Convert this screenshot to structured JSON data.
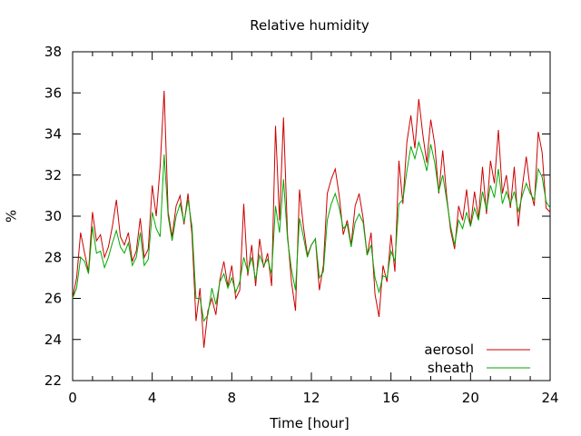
{
  "chart_data": {
    "type": "line",
    "title": "Relative humidity",
    "xlabel": "Time [hour]",
    "ylabel": "%",
    "xlim": [
      0,
      24
    ],
    "ylim": [
      22,
      38
    ],
    "x_ticks": [
      0,
      4,
      8,
      12,
      16,
      20,
      24
    ],
    "y_ticks": [
      22,
      24,
      26,
      28,
      30,
      32,
      34,
      36,
      38
    ],
    "x_tick_labels": [
      "0",
      "4",
      "8",
      "12",
      "16",
      "20",
      "24"
    ],
    "y_tick_labels": [
      "22",
      "24",
      "26",
      "28",
      "30",
      "32",
      "34",
      "36",
      "38"
    ],
    "grid": false,
    "legend_position": "bottom-right",
    "series": [
      {
        "name": "aerosol",
        "color": "#cc0000",
        "points": [
          [
            0,
            26.0
          ],
          [
            0.2,
            27.0
          ],
          [
            0.4,
            29.2
          ],
          [
            0.6,
            28.2
          ],
          [
            0.8,
            27.3
          ],
          [
            1.0,
            30.2
          ],
          [
            1.2,
            28.8
          ],
          [
            1.4,
            29.1
          ],
          [
            1.6,
            28.0
          ],
          [
            1.8,
            28.5
          ],
          [
            2.0,
            29.5
          ],
          [
            2.2,
            30.8
          ],
          [
            2.4,
            29.0
          ],
          [
            2.6,
            28.6
          ],
          [
            2.8,
            29.2
          ],
          [
            3.0,
            27.8
          ],
          [
            3.2,
            28.3
          ],
          [
            3.4,
            29.9
          ],
          [
            3.6,
            28.0
          ],
          [
            3.8,
            28.4
          ],
          [
            4.0,
            31.5
          ],
          [
            4.2,
            30.0
          ],
          [
            4.4,
            32.4
          ],
          [
            4.6,
            36.1
          ],
          [
            4.8,
            30.2
          ],
          [
            5.0,
            29.0
          ],
          [
            5.2,
            30.5
          ],
          [
            5.4,
            31.0
          ],
          [
            5.6,
            29.6
          ],
          [
            5.8,
            31.1
          ],
          [
            6.0,
            29.1
          ],
          [
            6.2,
            24.9
          ],
          [
            6.4,
            26.5
          ],
          [
            6.6,
            23.6
          ],
          [
            6.8,
            25.4
          ],
          [
            7.0,
            26.0
          ],
          [
            7.2,
            25.2
          ],
          [
            7.4,
            26.9
          ],
          [
            7.6,
            27.8
          ],
          [
            7.8,
            26.6
          ],
          [
            8.0,
            27.6
          ],
          [
            8.2,
            26.0
          ],
          [
            8.4,
            26.4
          ],
          [
            8.6,
            30.6
          ],
          [
            8.8,
            27.1
          ],
          [
            9.0,
            28.6
          ],
          [
            9.2,
            26.6
          ],
          [
            9.4,
            28.9
          ],
          [
            9.6,
            27.5
          ],
          [
            9.8,
            28.2
          ],
          [
            10.0,
            26.6
          ],
          [
            10.2,
            34.4
          ],
          [
            10.4,
            29.8
          ],
          [
            10.6,
            34.8
          ],
          [
            10.8,
            29.1
          ],
          [
            11.0,
            26.8
          ],
          [
            11.2,
            25.4
          ],
          [
            11.4,
            31.3
          ],
          [
            11.6,
            29.5
          ],
          [
            11.8,
            28.1
          ],
          [
            12.0,
            28.6
          ],
          [
            12.2,
            28.9
          ],
          [
            12.4,
            26.4
          ],
          [
            12.6,
            27.6
          ],
          [
            12.8,
            31.1
          ],
          [
            13.0,
            31.8
          ],
          [
            13.2,
            32.3
          ],
          [
            13.4,
            31.0
          ],
          [
            13.6,
            29.1
          ],
          [
            13.8,
            29.8
          ],
          [
            14.0,
            28.6
          ],
          [
            14.2,
            30.5
          ],
          [
            14.4,
            31.1
          ],
          [
            14.6,
            29.9
          ],
          [
            14.8,
            28.1
          ],
          [
            15.0,
            29.2
          ],
          [
            15.2,
            26.2
          ],
          [
            15.4,
            25.1
          ],
          [
            15.6,
            27.6
          ],
          [
            15.8,
            26.8
          ],
          [
            16.0,
            29.1
          ],
          [
            16.2,
            27.3
          ],
          [
            16.4,
            32.7
          ],
          [
            16.6,
            30.6
          ],
          [
            16.8,
            33.6
          ],
          [
            17.0,
            34.9
          ],
          [
            17.2,
            33.3
          ],
          [
            17.4,
            35.7
          ],
          [
            17.6,
            34.0
          ],
          [
            17.8,
            32.6
          ],
          [
            18.0,
            34.7
          ],
          [
            18.2,
            33.5
          ],
          [
            18.4,
            31.1
          ],
          [
            18.6,
            33.2
          ],
          [
            18.8,
            31.0
          ],
          [
            19.0,
            29.3
          ],
          [
            19.2,
            28.4
          ],
          [
            19.4,
            30.5
          ],
          [
            19.6,
            29.8
          ],
          [
            19.8,
            31.3
          ],
          [
            20.0,
            29.5
          ],
          [
            20.2,
            31.2
          ],
          [
            20.4,
            29.9
          ],
          [
            20.6,
            32.4
          ],
          [
            20.8,
            30.1
          ],
          [
            21.0,
            32.7
          ],
          [
            21.2,
            31.6
          ],
          [
            21.4,
            34.2
          ],
          [
            21.6,
            31.1
          ],
          [
            21.8,
            32.0
          ],
          [
            22.0,
            30.4
          ],
          [
            22.2,
            32.4
          ],
          [
            22.4,
            29.5
          ],
          [
            22.6,
            31.4
          ],
          [
            22.8,
            32.9
          ],
          [
            23.0,
            31.3
          ],
          [
            23.2,
            30.5
          ],
          [
            23.4,
            34.1
          ],
          [
            23.6,
            33.1
          ],
          [
            23.8,
            30.4
          ],
          [
            24.0,
            30.2
          ]
        ]
      },
      {
        "name": "sheath",
        "color": "#00aa00",
        "points": [
          [
            0,
            26.0
          ],
          [
            0.2,
            26.5
          ],
          [
            0.4,
            28.0
          ],
          [
            0.6,
            27.8
          ],
          [
            0.8,
            27.2
          ],
          [
            1.0,
            29.5
          ],
          [
            1.2,
            28.2
          ],
          [
            1.4,
            28.3
          ],
          [
            1.6,
            27.5
          ],
          [
            1.8,
            28.0
          ],
          [
            2.0,
            28.7
          ],
          [
            2.2,
            29.3
          ],
          [
            2.4,
            28.5
          ],
          [
            2.6,
            28.2
          ],
          [
            2.8,
            28.7
          ],
          [
            3.0,
            27.6
          ],
          [
            3.2,
            28.0
          ],
          [
            3.4,
            29.2
          ],
          [
            3.6,
            27.6
          ],
          [
            3.8,
            27.9
          ],
          [
            4.0,
            30.2
          ],
          [
            4.2,
            29.4
          ],
          [
            4.4,
            29.0
          ],
          [
            4.6,
            33.0
          ],
          [
            4.8,
            30.0
          ],
          [
            5.0,
            28.8
          ],
          [
            5.2,
            30.0
          ],
          [
            5.4,
            30.6
          ],
          [
            5.6,
            29.7
          ],
          [
            5.8,
            30.8
          ],
          [
            6.0,
            29.5
          ],
          [
            6.2,
            26.0
          ],
          [
            6.4,
            26.0
          ],
          [
            6.6,
            24.9
          ],
          [
            6.8,
            25.2
          ],
          [
            7.0,
            26.5
          ],
          [
            7.2,
            25.7
          ],
          [
            7.4,
            26.8
          ],
          [
            7.6,
            27.2
          ],
          [
            7.8,
            26.5
          ],
          [
            8.0,
            27.0
          ],
          [
            8.2,
            26.3
          ],
          [
            8.4,
            26.8
          ],
          [
            8.6,
            28.0
          ],
          [
            8.8,
            27.3
          ],
          [
            9.0,
            28.0
          ],
          [
            9.2,
            26.9
          ],
          [
            9.4,
            28.1
          ],
          [
            9.6,
            27.6
          ],
          [
            9.8,
            27.9
          ],
          [
            10.0,
            27.2
          ],
          [
            10.2,
            30.5
          ],
          [
            10.4,
            29.2
          ],
          [
            10.6,
            31.8
          ],
          [
            10.8,
            28.9
          ],
          [
            11.0,
            27.4
          ],
          [
            11.2,
            26.4
          ],
          [
            11.4,
            29.9
          ],
          [
            11.6,
            29.0
          ],
          [
            11.8,
            28.0
          ],
          [
            12.0,
            28.6
          ],
          [
            12.2,
            28.9
          ],
          [
            12.4,
            27.0
          ],
          [
            12.6,
            27.3
          ],
          [
            12.8,
            29.8
          ],
          [
            13.0,
            30.6
          ],
          [
            13.2,
            31.1
          ],
          [
            13.4,
            30.4
          ],
          [
            13.6,
            29.4
          ],
          [
            13.8,
            29.6
          ],
          [
            14.0,
            28.5
          ],
          [
            14.2,
            29.7
          ],
          [
            14.4,
            30.1
          ],
          [
            14.6,
            29.7
          ],
          [
            14.8,
            28.1
          ],
          [
            15.0,
            28.6
          ],
          [
            15.2,
            27.0
          ],
          [
            15.4,
            26.3
          ],
          [
            15.6,
            27.1
          ],
          [
            15.8,
            27.0
          ],
          [
            16.0,
            28.3
          ],
          [
            16.2,
            27.8
          ],
          [
            16.4,
            30.6
          ],
          [
            16.6,
            30.8
          ],
          [
            16.8,
            32.2
          ],
          [
            17.0,
            33.4
          ],
          [
            17.2,
            32.8
          ],
          [
            17.4,
            33.6
          ],
          [
            17.6,
            33.0
          ],
          [
            17.8,
            32.2
          ],
          [
            18.0,
            33.5
          ],
          [
            18.2,
            32.6
          ],
          [
            18.4,
            31.2
          ],
          [
            18.6,
            32.0
          ],
          [
            18.8,
            30.8
          ],
          [
            19.0,
            29.5
          ],
          [
            19.2,
            28.6
          ],
          [
            19.4,
            29.8
          ],
          [
            19.6,
            29.4
          ],
          [
            19.8,
            30.2
          ],
          [
            20.0,
            29.5
          ],
          [
            20.2,
            30.4
          ],
          [
            20.4,
            29.8
          ],
          [
            20.6,
            31.2
          ],
          [
            20.8,
            30.3
          ],
          [
            21.0,
            31.5
          ],
          [
            21.2,
            30.9
          ],
          [
            21.4,
            32.3
          ],
          [
            21.6,
            30.6
          ],
          [
            21.8,
            31.2
          ],
          [
            22.0,
            30.6
          ],
          [
            22.2,
            31.2
          ],
          [
            22.4,
            30.2
          ],
          [
            22.6,
            31.0
          ],
          [
            22.8,
            31.6
          ],
          [
            23.0,
            31.1
          ],
          [
            23.2,
            30.8
          ],
          [
            23.4,
            32.3
          ],
          [
            23.6,
            31.9
          ],
          [
            23.8,
            30.7
          ],
          [
            24.0,
            30.4
          ]
        ]
      }
    ]
  }
}
